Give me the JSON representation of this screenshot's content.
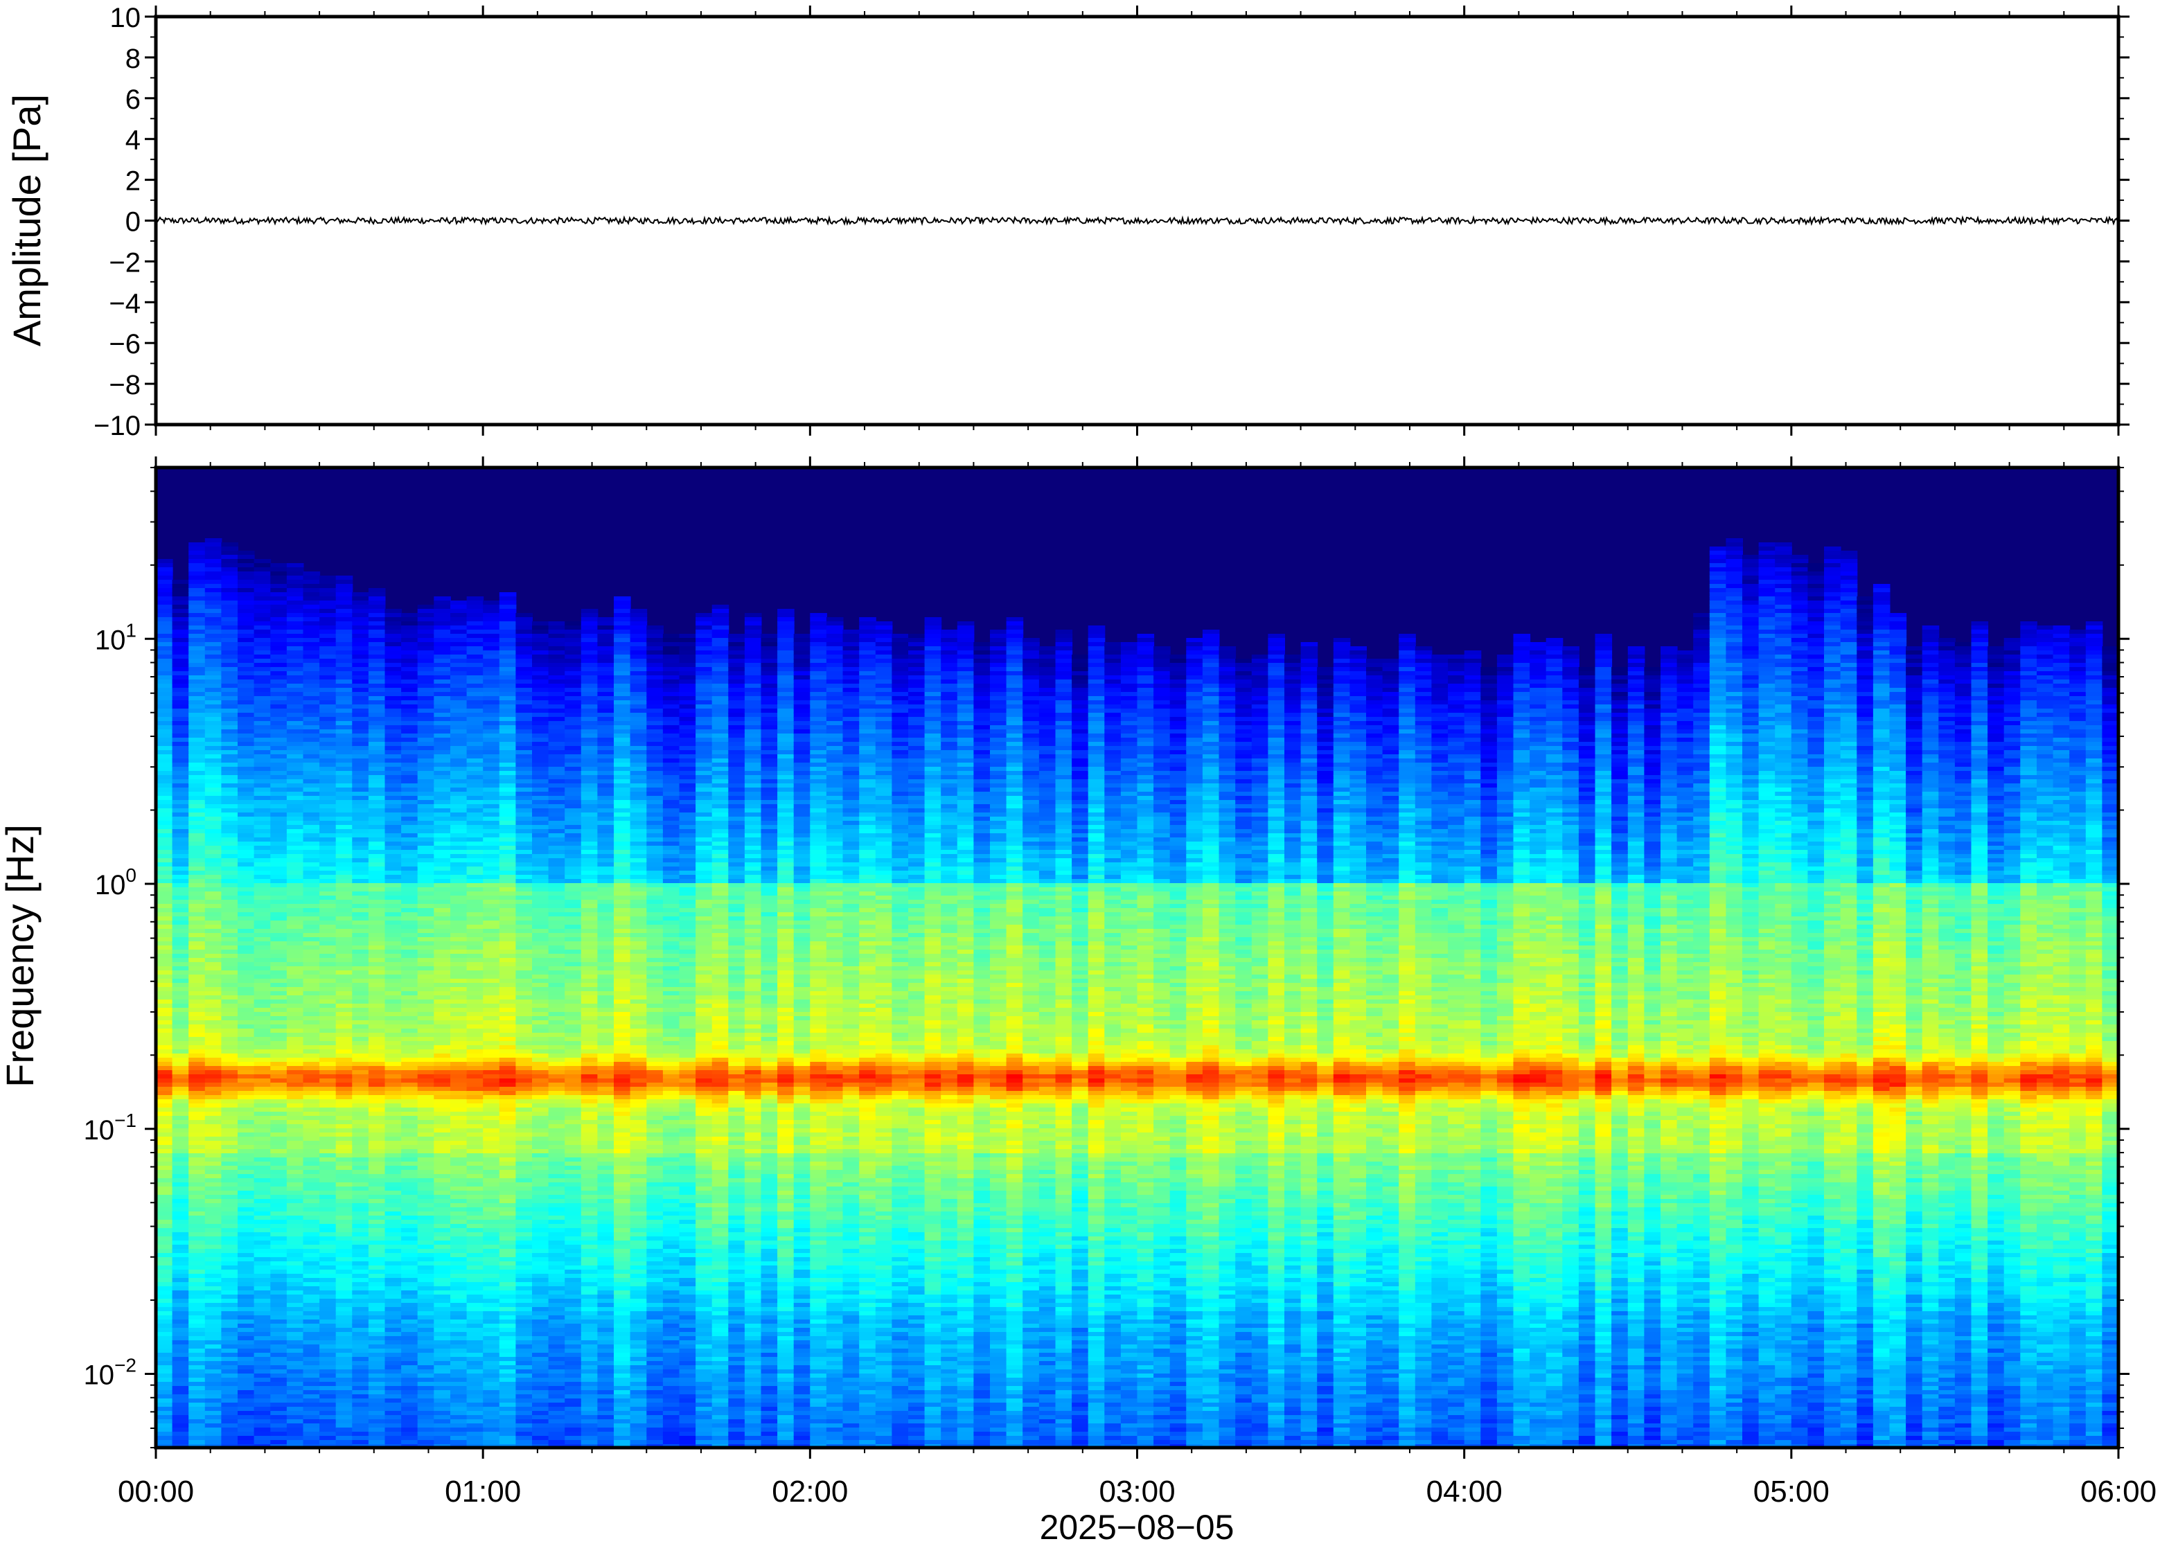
{
  "chart_data": [
    {
      "type": "line",
      "title": "",
      "xlabel": "",
      "ylabel": "Amplitude [Pa]",
      "ylim": [
        -10,
        10
      ],
      "yticks": [
        10,
        8,
        6,
        4,
        2,
        0,
        -2,
        -4,
        -6,
        -8,
        -10
      ],
      "ytick_labels": [
        "10",
        "8",
        "6",
        "4",
        "2",
        "0",
        "−2",
        "−4",
        "−6",
        "−8",
        "−10"
      ],
      "x_range": [
        "00:00",
        "06:00"
      ],
      "series": [
        {
          "x": [
            "00:00",
            "01:00",
            "02:00",
            "03:00",
            "04:00",
            "05:00",
            "06:00"
          ],
          "values": [
            0,
            0,
            0,
            0,
            0,
            0,
            0
          ]
        }
      ],
      "trace_peak_amplitude_pa": 0.15,
      "line_color": "#000000",
      "grid": false
    },
    {
      "type": "heatmap",
      "title": "",
      "xlabel": "2025−08−05",
      "ylabel": "Frequency [Hz]",
      "y_scale": "log",
      "ylim": [
        0.005,
        50
      ],
      "yticks": [
        {
          "base": "10",
          "exp": "1",
          "value": 10
        },
        {
          "base": "10",
          "exp": "0",
          "value": 1
        },
        {
          "base": "10",
          "exp": "−1",
          "value": 0.1
        },
        {
          "base": "10",
          "exp": "−2",
          "value": 0.01
        }
      ],
      "xticks": [
        "00:00",
        "01:00",
        "02:00",
        "03:00",
        "04:00",
        "05:00",
        "06:00"
      ],
      "x_range": [
        "00:00",
        "06:00"
      ],
      "colormap": "jet",
      "colorscale": [
        "#000080",
        "#0000ff",
        "#0080ff",
        "#00ffff",
        "#80ff80",
        "#ffff00",
        "#ff8000",
        "#ff0000"
      ],
      "upper_cutoff_hz_by_time": [
        {
          "time": "00:00",
          "hz": 10
        },
        {
          "time": "00:15",
          "hz": 15
        },
        {
          "time": "00:45",
          "hz": 8
        },
        {
          "time": "01:30",
          "hz": 7
        },
        {
          "time": "02:30",
          "hz": 6
        },
        {
          "time": "03:30",
          "hz": 5
        },
        {
          "time": "04:40",
          "hz": 5
        },
        {
          "time": "04:48",
          "hz": 14
        },
        {
          "time": "05:10",
          "hz": 13
        },
        {
          "time": "05:20",
          "hz": 6
        },
        {
          "time": "06:00",
          "hz": 6
        }
      ],
      "microseism_peak_hz": 0.16,
      "grid": false
    }
  ]
}
